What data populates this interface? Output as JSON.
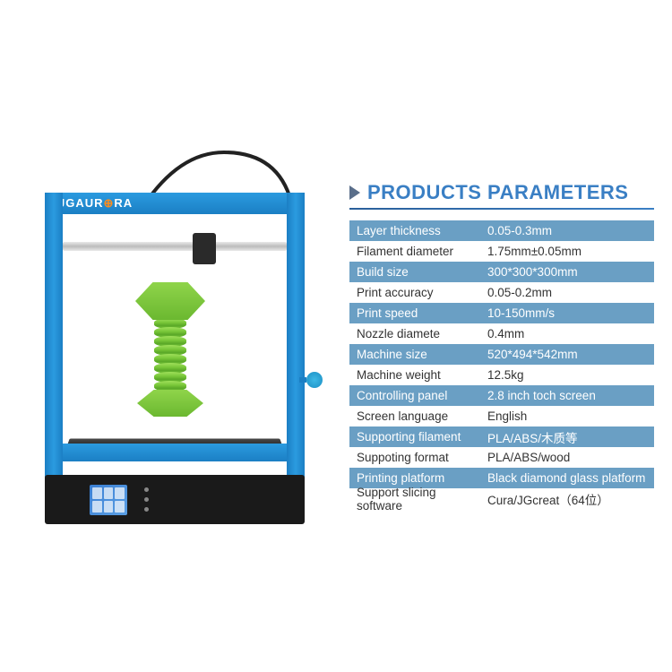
{
  "brand": "JGAUR  RA",
  "title": "PRODUCTS PARAMETERS",
  "colors": {
    "primary_blue": "#1b7fc4",
    "light_blue": "#2b9be0",
    "row_blue": "#6a9fc4",
    "title_blue": "#3a7fc4",
    "triangle": "#5a6e8a",
    "green_light": "#8fd44a",
    "green_dark": "#6bb830",
    "black": "#1a1a1a"
  },
  "params": [
    {
      "label": "Layer thickness",
      "value": "0.05-0.3mm",
      "style": "blue"
    },
    {
      "label": "Filament diameter",
      "value": "1.75mm±0.05mm",
      "style": "white"
    },
    {
      "label": "Build size",
      "value": "300*300*300mm",
      "style": "blue"
    },
    {
      "label": "Print accuracy",
      "value": "0.05-0.2mm",
      "style": "white"
    },
    {
      "label": "Print speed",
      "value": "10-150mm/s",
      "style": "blue"
    },
    {
      "label": "Nozzle diamete",
      "value": "0.4mm",
      "style": "white"
    },
    {
      "label": "Machine size",
      "value": "520*494*542mm",
      "style": "blue"
    },
    {
      "label": "Machine weight",
      "value": "12.5kg",
      "style": "white"
    },
    {
      "label": "Controlling panel",
      "value": "2.8 inch toch screen",
      "style": "blue"
    },
    {
      "label": "Screen language",
      "value": "English",
      "style": "white"
    },
    {
      "label": "Supporting filament",
      "value": "PLA/ABS/木质等",
      "style": "blue"
    },
    {
      "label": "Suppoting format",
      "value": "PLA/ABS/wood",
      "style": "white"
    },
    {
      "label": "Printing platform",
      "value": "Black diamond glass platform",
      "style": "blue"
    },
    {
      "label": "Support slicing software",
      "value": "Cura/JGcreat（64位）",
      "style": "white"
    }
  ]
}
